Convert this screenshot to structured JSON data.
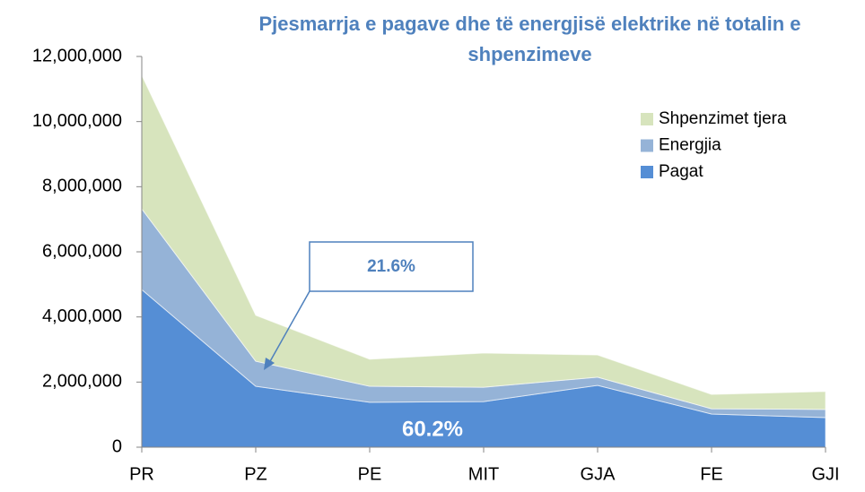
{
  "chart_data": {
    "type": "stacked_area",
    "title": "Pjesmarrja e pagave dhe të energjisë elektrike në totalin e shpenzimeve",
    "categories": [
      "PR",
      "PZ",
      "PE",
      "MIT",
      "GJA",
      "FE",
      "GJI"
    ],
    "series": [
      {
        "name": "Pagat",
        "color": "#558ed5",
        "values": [
          4840000,
          1870000,
          1380000,
          1400000,
          1900000,
          1020000,
          910000
        ]
      },
      {
        "name": "Energjia",
        "color": "#95b3d7",
        "values": [
          2480000,
          770000,
          490000,
          440000,
          250000,
          160000,
          250000
        ]
      },
      {
        "name": "Shpenzimet tjera",
        "color": "#d7e4bd",
        "values": [
          4100000,
          1410000,
          830000,
          1050000,
          680000,
          440000,
          550000
        ]
      }
    ],
    "ylim": [
      0,
      12000000
    ],
    "yticks": [
      0,
      {
        "value": 2000000,
        "label": "2,000,000"
      },
      {
        "value": 4000000,
        "label": "4,000,000"
      },
      {
        "value": 6000000,
        "label": "6,000,000"
      },
      {
        "value": 8000000,
        "label": "8,000,000"
      },
      {
        "value": 10000000,
        "label": "10,000,000"
      },
      {
        "value": 12000000,
        "label": "12,000,000"
      }
    ],
    "legend": "upper right",
    "annotations": [
      "21.6%",
      "60.2%"
    ]
  }
}
